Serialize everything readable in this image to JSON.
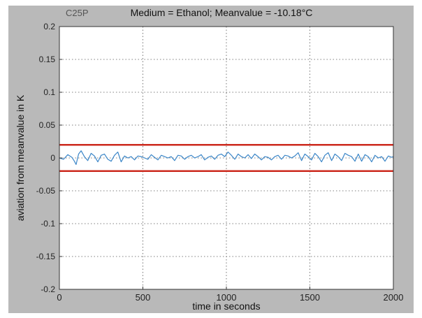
{
  "chart_data": {
    "type": "line",
    "code_label": "C25P",
    "title": "Medium = Ethanol;   Meanvalue = -10.18°C",
    "xlabel": "time in seconds",
    "ylabel": "aviation from meanvalue in K",
    "xlim": [
      0,
      2000
    ],
    "ylim": [
      -0.2,
      0.2
    ],
    "xticks": [
      0,
      500,
      1000,
      1500,
      2000
    ],
    "xtick_labels": [
      "0",
      "500",
      "1000",
      "1500",
      "2000"
    ],
    "yticks": [
      0.2,
      0.15,
      0.1,
      0.05,
      0,
      -0.05,
      -0.1,
      -0.15,
      -0.2
    ],
    "ytick_labels": [
      "0.2",
      "0.15",
      "0.1",
      "0.05",
      "0",
      "-0.05",
      "-0.1",
      "-0.15",
      "-0.2"
    ],
    "grid": true,
    "limit_lines": [
      {
        "y": 0.02,
        "color": "#cc2a1e"
      },
      {
        "y": -0.02,
        "color": "#cc2a1e"
      }
    ],
    "series": [
      {
        "color": "#3b86c8",
        "x": [
          0,
          25,
          50,
          75,
          90,
          100,
          115,
          130,
          150,
          170,
          190,
          210,
          230,
          250,
          270,
          290,
          310,
          330,
          350,
          370,
          390,
          410,
          430,
          450,
          470,
          490,
          510,
          530,
          550,
          570,
          590,
          610,
          630,
          650,
          670,
          690,
          710,
          730,
          750,
          770,
          790,
          810,
          830,
          850,
          870,
          890,
          910,
          930,
          950,
          970,
          990,
          1010,
          1030,
          1050,
          1070,
          1090,
          1110,
          1130,
          1150,
          1170,
          1190,
          1210,
          1230,
          1250,
          1270,
          1290,
          1310,
          1330,
          1350,
          1370,
          1390,
          1410,
          1430,
          1450,
          1470,
          1490,
          1510,
          1530,
          1550,
          1570,
          1590,
          1610,
          1630,
          1650,
          1670,
          1690,
          1710,
          1730,
          1750,
          1770,
          1790,
          1810,
          1830,
          1850,
          1870,
          1890,
          1910,
          1930,
          1950,
          1970,
          1990,
          2000
        ],
        "y": [
          0.0,
          -0.002,
          0.005,
          0.001,
          -0.005,
          -0.01,
          0.006,
          0.011,
          0.002,
          -0.004,
          0.007,
          0.003,
          -0.006,
          0.004,
          0.006,
          -0.002,
          -0.005,
          0.004,
          0.009,
          -0.006,
          0.003,
          0.0,
          0.002,
          -0.003,
          0.003,
          0.002,
          0.0,
          -0.002,
          0.005,
          0.001,
          -0.003,
          0.004,
          0.002,
          0.0,
          0.002,
          -0.004,
          0.004,
          0.003,
          -0.002,
          0.002,
          0.004,
          0.0,
          0.002,
          0.005,
          -0.003,
          0.001,
          0.003,
          -0.002,
          0.004,
          0.006,
          0.002,
          0.009,
          0.004,
          -0.002,
          0.006,
          0.002,
          0.0,
          0.005,
          -0.001,
          0.006,
          0.002,
          -0.003,
          0.002,
          0.001,
          -0.003,
          0.002,
          0.004,
          -0.002,
          0.004,
          0.003,
          0.0,
          0.003,
          0.008,
          -0.004,
          0.006,
          0.002,
          -0.003,
          0.007,
          0.002,
          -0.006,
          0.004,
          0.008,
          -0.004,
          0.006,
          0.002,
          -0.004,
          0.007,
          0.004,
          0.002,
          -0.005,
          0.006,
          -0.005,
          0.005,
          0.002,
          -0.006,
          0.004,
          0.0,
          0.002,
          -0.005,
          0.003,
          0.001,
          0.002
        ]
      }
    ]
  }
}
